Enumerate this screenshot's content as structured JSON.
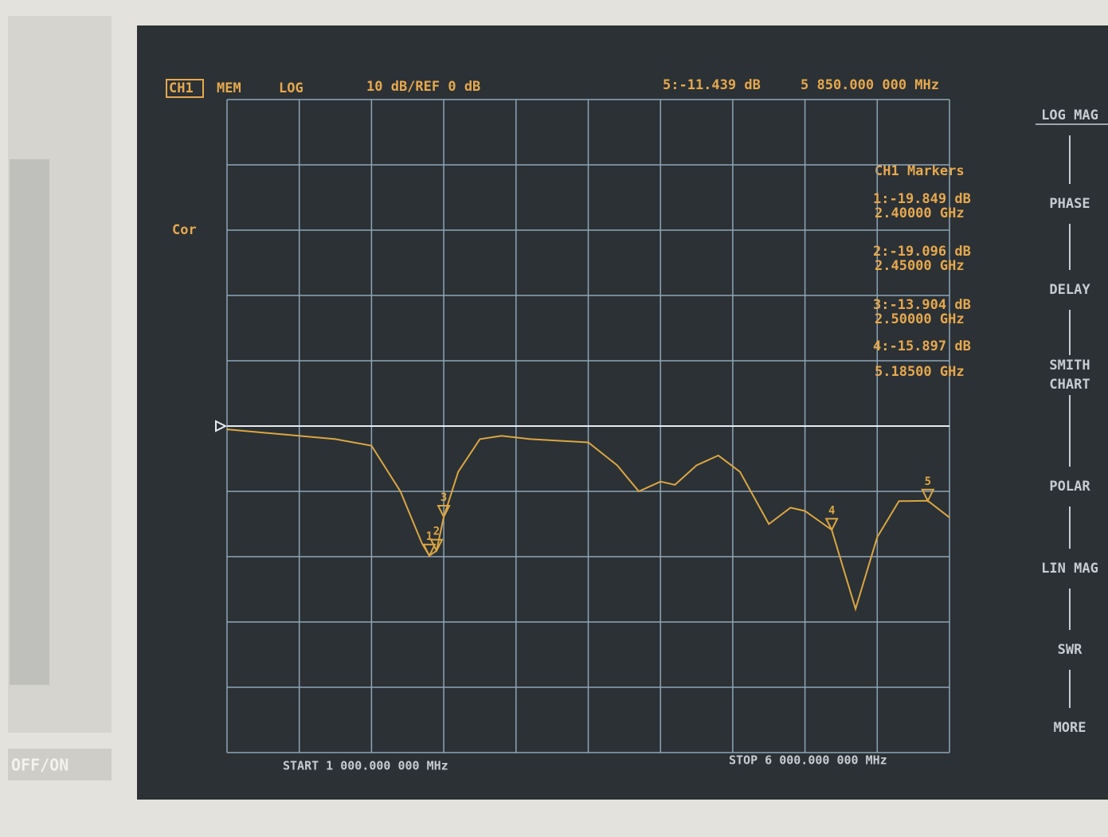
{
  "header": {
    "channel": "CH1",
    "mem": "MEM",
    "format": "LOG",
    "scale": "10 dB/REF 0 dB",
    "active_marker_value": "5:-11.439 dB",
    "active_marker_freq": "5 850.000 000 MHz"
  },
  "status": "Cor",
  "marker_table": {
    "title": "CH1 Markers",
    "rows": [
      {
        "value": "1:-19.849 dB",
        "freq": "2.40000 GHz"
      },
      {
        "value": "2:-19.096 dB",
        "freq": "2.45000 GHz"
      },
      {
        "value": "3:-13.904 dB",
        "freq": "2.50000 GHz"
      },
      {
        "value": "4:-15.897 dB",
        "freq": "5.18500 GHz"
      }
    ]
  },
  "softkeys": [
    [
      "LOG MAG"
    ],
    [
      "PHASE"
    ],
    [
      "DELAY"
    ],
    [
      "SMITH",
      "CHART"
    ],
    [
      "POLAR"
    ],
    [
      "LIN MAG"
    ],
    [
      "SWR"
    ],
    [
      "MORE"
    ]
  ],
  "footer": {
    "start": "START 1 000.000 000 MHz",
    "stop": "STOP 6 000.000 000 MHz"
  },
  "bezel": {
    "power": "OFF/ON"
  },
  "chart_data": {
    "type": "line",
    "x": [
      1.0,
      1.25,
      1.5,
      1.75,
      2.0,
      2.2,
      2.35,
      2.4,
      2.45,
      2.5,
      2.6,
      2.75,
      2.9,
      3.1,
      3.5,
      3.7,
      3.85,
      4.0,
      4.1,
      4.25,
      4.4,
      4.55,
      4.75,
      4.9,
      5.0,
      5.185,
      5.35,
      5.5,
      5.65,
      5.85,
      6.0
    ],
    "series": [
      {
        "color": "#dba642",
        "values": [
          -0.5,
          -1,
          -1.5,
          -2,
          -3,
          -10,
          -18,
          -19.849,
          -19.096,
          -13.904,
          -7,
          -2,
          -1.5,
          -2,
          -2.5,
          -6,
          -10,
          -8.5,
          -9,
          -6,
          -4.5,
          -7,
          -15,
          -12.5,
          -13,
          -15.897,
          -28,
          -17,
          -11.5,
          -11.439,
          -14
        ]
      }
    ],
    "xlim": [
      1,
      6
    ],
    "ylim": [
      -50,
      50
    ],
    "xticks": [
      1,
      1.5,
      2,
      2.5,
      3,
      3.5,
      4,
      4.5,
      5,
      5.5,
      6
    ],
    "yticks": [
      -50,
      -40,
      -30,
      -20,
      -10,
      0,
      10,
      20,
      30,
      40,
      50
    ],
    "grid": true,
    "ref_level": 0,
    "markers": [
      {
        "label": "1",
        "x": 2.4,
        "y": -19.849
      },
      {
        "label": "2",
        "x": 2.45,
        "y": -19.096
      },
      {
        "label": "3",
        "x": 2.5,
        "y": -13.904
      },
      {
        "label": "4",
        "x": 5.185,
        "y": -15.897
      },
      {
        "label": "5",
        "x": 5.85,
        "y": -11.439
      }
    ]
  }
}
